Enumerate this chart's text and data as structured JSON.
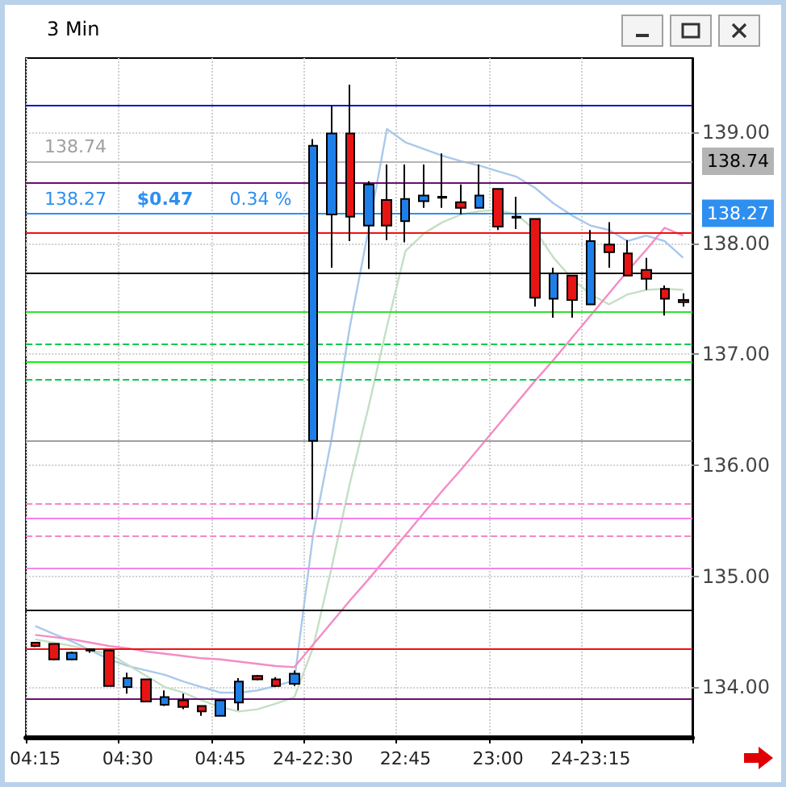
{
  "chart_data": {
    "type": "candlestick",
    "title": "3 Min",
    "categories": [
      "04:15",
      null,
      null,
      null,
      null,
      "04:30",
      null,
      null,
      null,
      null,
      "04:45",
      null,
      null,
      null,
      null,
      "24-22:30",
      null,
      null,
      null,
      null,
      "22:45",
      null,
      null,
      null,
      null,
      "23:00",
      null,
      null,
      null,
      null,
      "24-23:15",
      null,
      null,
      null,
      null,
      null
    ],
    "ohlc": [
      [
        134.4,
        134.4,
        134.36,
        134.37
      ],
      [
        134.39,
        134.39,
        134.24,
        134.25
      ],
      [
        134.25,
        134.32,
        134.24,
        134.31
      ],
      [
        134.34,
        134.35,
        134.31,
        134.33
      ],
      [
        134.33,
        134.33,
        134.01,
        134.01
      ],
      [
        134.0,
        134.13,
        133.94,
        134.08
      ],
      [
        134.07,
        134.07,
        133.87,
        133.87
      ],
      [
        133.84,
        133.97,
        133.83,
        133.91
      ],
      [
        133.88,
        133.94,
        133.8,
        133.82
      ],
      [
        133.83,
        133.83,
        133.74,
        133.78
      ],
      [
        133.74,
        133.88,
        133.74,
        133.88
      ],
      [
        133.86,
        134.08,
        133.79,
        134.05
      ],
      [
        134.1,
        134.11,
        134.06,
        134.07
      ],
      [
        134.07,
        134.09,
        134.0,
        134.01
      ],
      [
        134.03,
        134.15,
        134.01,
        134.12
      ],
      [
        136.22,
        138.94,
        135.51,
        138.88
      ],
      [
        138.26,
        139.24,
        137.78,
        138.99
      ],
      [
        138.99,
        139.43,
        138.02,
        138.24
      ],
      [
        138.16,
        138.56,
        137.77,
        138.53
      ],
      [
        138.39,
        138.71,
        138.03,
        138.16
      ],
      [
        138.2,
        138.71,
        138.01,
        138.4
      ],
      [
        138.38,
        138.71,
        138.32,
        138.43
      ],
      [
        138.41,
        138.81,
        138.32,
        138.42
      ],
      [
        138.37,
        138.53,
        138.26,
        138.32
      ],
      [
        138.32,
        138.71,
        138.32,
        138.43
      ],
      [
        138.49,
        138.49,
        138.12,
        138.15
      ],
      [
        138.23,
        138.42,
        138.13,
        138.24
      ],
      [
        138.22,
        138.22,
        137.43,
        137.51
      ],
      [
        137.5,
        137.78,
        137.33,
        137.73
      ],
      [
        137.71,
        137.71,
        137.33,
        137.49
      ],
      [
        137.45,
        138.12,
        137.45,
        138.02
      ],
      [
        137.99,
        138.19,
        137.78,
        137.92
      ],
      [
        137.91,
        138.03,
        137.71,
        137.71
      ],
      [
        137.76,
        137.87,
        137.58,
        137.68
      ],
      [
        137.59,
        137.62,
        137.35,
        137.5
      ],
      [
        137.49,
        137.55,
        137.43,
        137.47
      ]
    ],
    "colors": [
      "#e81414",
      "#e81414",
      "#1e7fe8",
      "#e81414",
      "#e81414",
      "#1e7fe8",
      "#e81414",
      "#1e7fe8",
      "#e81414",
      "#e81414",
      "#1e7fe8",
      "#1e7fe8",
      "#e81414",
      "#e81414",
      "#1e7fe8",
      "#1e7fe8",
      "#1e7fe8",
      "#e81414",
      "#1e7fe8",
      "#e81414",
      "#1e7fe8",
      "#1e7fe8",
      "#1e7fe8",
      "#e81414",
      "#1e7fe8",
      "#e81414",
      "#1e7fe8",
      "#e81414",
      "#1e7fe8",
      "#e81414",
      "#1e7fe8",
      "#e81414",
      "#e81414",
      "#e81414",
      "#e81414",
      "#e81414"
    ],
    "series": [
      {
        "type": "line",
        "color": "#a9c9ec",
        "values": [
          134.55,
          134.48,
          134.41,
          134.33,
          134.25,
          134.19,
          134.15,
          134.11,
          134.05,
          134.0,
          133.95,
          133.95,
          133.97,
          134.01,
          134.06,
          135.36,
          136.23,
          137.25,
          138.12,
          139.03,
          138.91,
          138.85,
          138.79,
          138.74,
          138.7,
          138.65,
          138.6,
          138.5,
          138.36,
          138.25,
          138.16,
          138.12,
          138.02,
          138.07,
          138.02,
          137.87
        ]
      },
      {
        "type": "line",
        "color": "#c4dfc4",
        "values": [
          134.43,
          134.4,
          134.37,
          134.33,
          134.3,
          134.2,
          134.1,
          134.0,
          133.95,
          133.88,
          133.82,
          133.78,
          133.8,
          133.85,
          133.91,
          134.35,
          135.07,
          135.84,
          136.52,
          137.25,
          137.93,
          138.09,
          138.19,
          138.26,
          138.29,
          138.3,
          138.26,
          138.12,
          137.87,
          137.68,
          137.54,
          137.45,
          137.54,
          137.58,
          137.59,
          137.58
        ]
      },
      {
        "type": "line",
        "color": "#f48cc4",
        "values": [
          134.47,
          134.45,
          134.43,
          134.4,
          134.37,
          134.35,
          134.32,
          134.3,
          134.28,
          134.26,
          134.25,
          134.23,
          134.21,
          134.19,
          134.18,
          134.38,
          134.58,
          134.78,
          134.97,
          135.17,
          135.37,
          135.57,
          135.77,
          135.96,
          136.16,
          136.36,
          136.56,
          136.76,
          136.95,
          137.15,
          137.35,
          137.55,
          137.75,
          137.94,
          138.14,
          138.07
        ]
      }
    ],
    "ylim": [
      133.55,
      139.67
    ],
    "yticks": [
      {
        "value": 134,
        "label": "134.00"
      },
      {
        "value": 135,
        "label": "135.00"
      },
      {
        "value": 136,
        "label": "136.00"
      },
      {
        "value": 137,
        "label": "137.00"
      },
      {
        "value": 138,
        "label": "138.00"
      },
      {
        "value": 139,
        "label": "139.00"
      }
    ],
    "ref_lines": [
      {
        "axis": "y",
        "value": 139.25,
        "color": "#1010d8"
      },
      {
        "axis": "y",
        "value": 138.74,
        "color": "#b4b4b4",
        "label": "138.74"
      },
      {
        "axis": "y",
        "value": 138.54,
        "color": "#6a1070"
      },
      {
        "axis": "y",
        "value": 138.27,
        "color": "#2e8ff0",
        "label": "138.27"
      },
      {
        "axis": "y",
        "value": 138.09,
        "color": "#f01010"
      },
      {
        "axis": "y",
        "value": 137.74,
        "color": "#101010"
      },
      {
        "axis": "y",
        "value": 137.38,
        "color": "#30e030"
      },
      {
        "axis": "y",
        "value": 137.09,
        "color": "#10c850",
        "line_style": "dashed"
      },
      {
        "axis": "y",
        "value": 136.93,
        "color": "#10f010"
      },
      {
        "axis": "y",
        "value": 136.78,
        "color": "#10c850",
        "line_style": "dashed"
      },
      {
        "axis": "y",
        "value": 136.22,
        "color": "#a0a0a0"
      },
      {
        "axis": "y",
        "value": 135.65,
        "color": "#f488c0",
        "line_style": "dashed"
      },
      {
        "axis": "y",
        "value": 135.52,
        "color": "#f880f0"
      },
      {
        "axis": "y",
        "value": 135.36,
        "color": "#f488c0",
        "line_style": "dashed"
      },
      {
        "axis": "y",
        "value": 135.07,
        "color": "#f088e8"
      },
      {
        "axis": "y",
        "value": 134.7,
        "color": "#101010"
      },
      {
        "axis": "y",
        "value": 134.35,
        "color": "#f01010"
      },
      {
        "axis": "y",
        "value": 133.9,
        "color": "#6a1070"
      }
    ],
    "annotations": [
      {
        "text": "138.74",
        "y": 138.74
      },
      {
        "text": "138.27",
        "y": 138.27
      },
      {
        "text": "$0.47",
        "y": 138.27
      },
      {
        "text": "0.34 %",
        "y": 138.27
      }
    ],
    "grid": true
  }
}
